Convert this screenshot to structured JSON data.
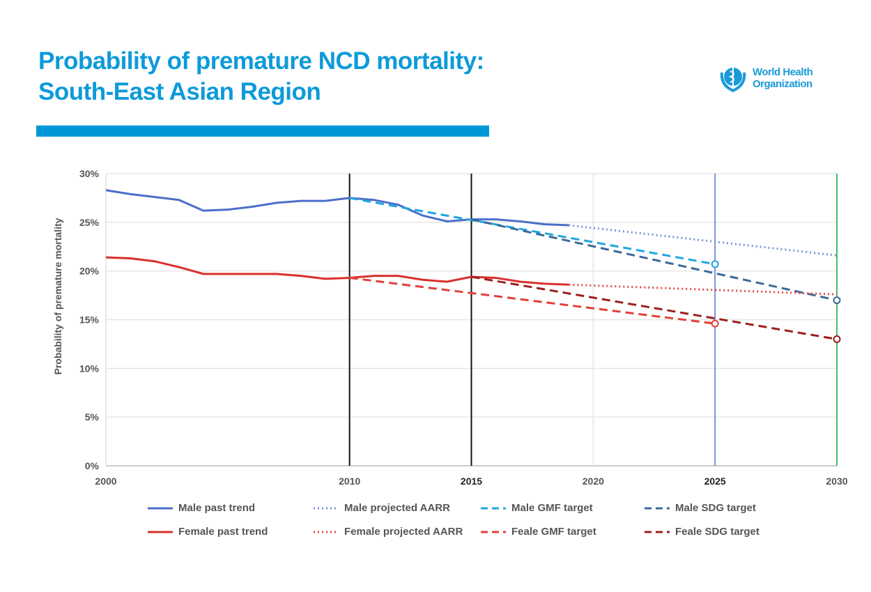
{
  "title": {
    "line1": "Probability of premature NCD mortality:",
    "line2": "South-East Asian Region"
  },
  "logo": {
    "line1": "World Health",
    "line2": "Organization"
  },
  "accent_color": "#0097d9",
  "chart_data": {
    "type": "line",
    "title": "",
    "xlabel": "",
    "ylabel": "Probability of premature mortality",
    "xlim": [
      2000,
      2030
    ],
    "ylim": [
      0,
      30
    ],
    "x_ticks": [
      "2000",
      "2010",
      "2015",
      "2020",
      "2025",
      "2030"
    ],
    "y_ticks": [
      "0%",
      "5%",
      "10%",
      "15%",
      "20%",
      "25%",
      "30%"
    ],
    "grid": true,
    "legend_position": "bottom",
    "reference_lines": [
      {
        "x": 2010,
        "color": "#111111"
      },
      {
        "x": 2015,
        "color": "#111111"
      },
      {
        "x": 2025,
        "color": "#7b93d6"
      },
      {
        "x": 2030,
        "color": "#3fbf6a"
      }
    ],
    "series": [
      {
        "name": "Male past trend",
        "color": "#4a6fc9",
        "style": "solid",
        "x": [
          2000,
          2001,
          2002,
          2003,
          2004,
          2005,
          2006,
          2007,
          2008,
          2009,
          2010,
          2011,
          2012,
          2013,
          2014,
          2015,
          2016,
          2017,
          2018,
          2019
        ],
        "y": [
          28.3,
          27.9,
          27.6,
          27.3,
          26.2,
          26.3,
          26.6,
          27.0,
          27.2,
          27.2,
          27.5,
          27.3,
          26.8,
          25.7,
          25.1,
          25.3,
          25.3,
          25.1,
          24.8,
          24.7
        ]
      },
      {
        "name": "Male projected AARR",
        "color": "#7b93d6",
        "style": "dotted",
        "x": [
          2019,
          2030
        ],
        "y": [
          24.7,
          21.6
        ]
      },
      {
        "name": "Male GMF target",
        "color": "#1fa6e0",
        "style": "dashed",
        "x": [
          2010,
          2025
        ],
        "y": [
          27.5,
          20.7
        ],
        "end_marker": true
      },
      {
        "name": "Male SDG target",
        "color": "#3a6a9a",
        "style": "dashed",
        "x": [
          2015,
          2030
        ],
        "y": [
          25.3,
          17.0
        ],
        "end_marker": true
      },
      {
        "name": "Female past trend",
        "color": "#d9302b",
        "style": "solid",
        "x": [
          2000,
          2001,
          2002,
          2003,
          2004,
          2005,
          2006,
          2007,
          2008,
          2009,
          2010,
          2011,
          2012,
          2013,
          2014,
          2015,
          2016,
          2017,
          2018,
          2019
        ],
        "y": [
          21.4,
          21.3,
          21.0,
          20.4,
          19.7,
          19.7,
          19.7,
          19.7,
          19.5,
          19.2,
          19.3,
          19.5,
          19.5,
          19.1,
          18.9,
          19.4,
          19.3,
          18.9,
          18.7,
          18.6
        ]
      },
      {
        "name": "Female projected AARR",
        "color": "#e0484a",
        "style": "dotted",
        "x": [
          2019,
          2030
        ],
        "y": [
          18.6,
          17.6
        ]
      },
      {
        "name": "Feale GMF target",
        "color": "#e0403a",
        "style": "dashed",
        "x": [
          2010,
          2025
        ],
        "y": [
          19.3,
          14.6
        ],
        "end_marker": true
      },
      {
        "name": "Feale SDG target",
        "color": "#9b2020",
        "style": "dashed",
        "x": [
          2015,
          2030
        ],
        "y": [
          19.4,
          13.0
        ],
        "end_marker": true
      }
    ]
  }
}
